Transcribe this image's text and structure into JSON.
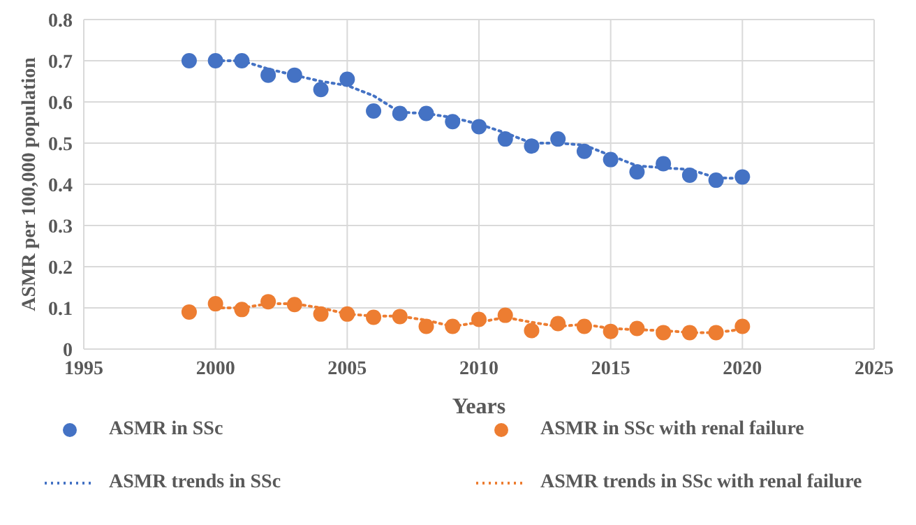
{
  "chart_data": {
    "type": "scatter",
    "xlabel": "Years",
    "ylabel": "ASMR per 100,000 population",
    "xlim": [
      1995,
      2025
    ],
    "xticks": [
      1995,
      2000,
      2005,
      2010,
      2015,
      2020,
      2025
    ],
    "ylim": [
      0,
      0.8
    ],
    "yticks": [
      0,
      0.1,
      0.2,
      0.3,
      0.4,
      0.5,
      0.6,
      0.7,
      0.8
    ],
    "grid": true,
    "legend": "bottom",
    "series": [
      {
        "name": "ASMR in SSc",
        "marker": "circle",
        "color": "#4472c4",
        "x": [
          1999,
          2000,
          2001,
          2002,
          2003,
          2004,
          2005,
          2006,
          2007,
          2008,
          2009,
          2010,
          2011,
          2012,
          2013,
          2014,
          2015,
          2016,
          2017,
          2018,
          2019,
          2020
        ],
        "values": [
          0.7,
          0.7,
          0.7,
          0.665,
          0.665,
          0.63,
          0.655,
          0.578,
          0.572,
          0.572,
          0.552,
          0.54,
          0.51,
          0.493,
          0.51,
          0.48,
          0.46,
          0.43,
          0.45,
          0.422,
          0.41,
          0.418
        ]
      },
      {
        "name": "ASMR in SSc with renal failure",
        "marker": "circle",
        "color": "#ed7d31",
        "x": [
          1999,
          2000,
          2001,
          2002,
          2003,
          2004,
          2005,
          2006,
          2007,
          2008,
          2009,
          2010,
          2011,
          2012,
          2013,
          2014,
          2015,
          2016,
          2017,
          2018,
          2019,
          2020
        ],
        "values": [
          0.09,
          0.11,
          0.096,
          0.115,
          0.108,
          0.085,
          0.085,
          0.077,
          0.079,
          0.055,
          0.055,
          0.072,
          0.082,
          0.045,
          0.062,
          0.055,
          0.043,
          0.05,
          0.04,
          0.04,
          0.04,
          0.055
        ]
      },
      {
        "name": "ASMR trends in SSc",
        "type": "line",
        "marker": "none",
        "line_style": "dotted",
        "color": "#4472c4",
        "x": [
          2000,
          2001,
          2002,
          2003,
          2004,
          2005,
          2006,
          2007,
          2008,
          2009,
          2010,
          2011,
          2012,
          2013,
          2014,
          2015,
          2016,
          2017,
          2018,
          2019,
          2020
        ],
        "values": [
          0.7,
          0.7,
          0.68,
          0.665,
          0.65,
          0.64,
          0.615,
          0.575,
          0.572,
          0.562,
          0.546,
          0.525,
          0.5,
          0.5,
          0.495,
          0.47,
          0.445,
          0.44,
          0.436,
          0.416,
          0.414
        ]
      },
      {
        "name": "ASMR trends in SSc with renal failure",
        "type": "line",
        "marker": "none",
        "line_style": "dotted",
        "color": "#ed7d31",
        "x": [
          2000,
          2001,
          2002,
          2003,
          2004,
          2005,
          2006,
          2007,
          2008,
          2009,
          2010,
          2011,
          2012,
          2013,
          2014,
          2015,
          2016,
          2017,
          2018,
          2019,
          2020
        ],
        "values": [
          0.1,
          0.1,
          0.11,
          0.11,
          0.1,
          0.085,
          0.08,
          0.08,
          0.07,
          0.055,
          0.065,
          0.077,
          0.065,
          0.055,
          0.06,
          0.05,
          0.047,
          0.045,
          0.04,
          0.04,
          0.048
        ]
      }
    ]
  }
}
